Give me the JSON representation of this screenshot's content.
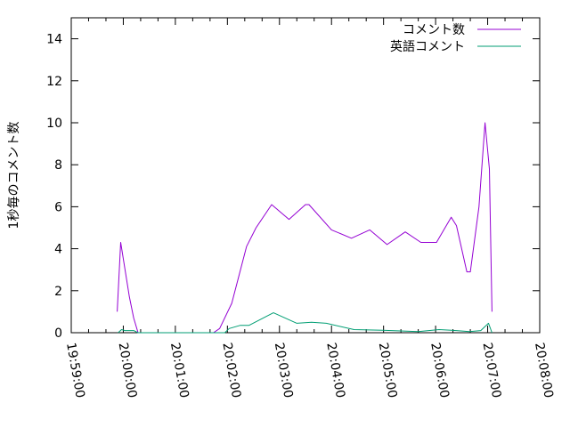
{
  "chart_data": {
    "type": "line",
    "title": "",
    "xlabel": "",
    "ylabel": "1秒毎のコメント数",
    "xlim": [
      "19:59:00",
      "20:08:00"
    ],
    "ylim": [
      0,
      15
    ],
    "x_ticks": [
      "19:59:00",
      "20:00:00",
      "20:01:00",
      "20:02:00",
      "20:03:00",
      "20:04:00",
      "20:05:00",
      "20:06:00",
      "20:07:00",
      "20:08:00"
    ],
    "y_ticks": [
      "0",
      "2",
      "4",
      "6",
      "8",
      "10",
      "12",
      "14"
    ],
    "grid": false,
    "legend_position": "top-right",
    "series": [
      {
        "name": "コメント数",
        "color": "#9400d3",
        "points": [
          [
            "19:59:53",
            1.0
          ],
          [
            "19:59:57",
            4.3
          ],
          [
            "20:00:02",
            3.0
          ],
          [
            "20:00:07",
            1.7
          ],
          [
            "20:00:12",
            0.7
          ],
          [
            "20:00:17",
            0
          ],
          [
            "20:01:44",
            0
          ],
          [
            "20:01:51",
            0.2
          ],
          [
            "20:02:05",
            1.4
          ],
          [
            "20:02:22",
            4.1
          ],
          [
            "20:02:33",
            5.0
          ],
          [
            "20:02:51",
            6.1
          ],
          [
            "20:03:11",
            5.4
          ],
          [
            "20:03:30",
            6.1
          ],
          [
            "20:03:34",
            6.1
          ],
          [
            "20:04:00",
            4.9
          ],
          [
            "20:04:23",
            4.5
          ],
          [
            "20:04:44",
            4.9
          ],
          [
            "20:05:04",
            4.2
          ],
          [
            "20:05:25",
            4.8
          ],
          [
            "20:05:43",
            4.3
          ],
          [
            "20:06:01",
            4.3
          ],
          [
            "20:06:18",
            5.5
          ],
          [
            "20:06:24",
            5.1
          ],
          [
            "20:06:36",
            2.9
          ],
          [
            "20:06:40",
            2.9
          ],
          [
            "20:06:50",
            6.0
          ],
          [
            "20:06:57",
            10.0
          ],
          [
            "20:07:02",
            7.8
          ],
          [
            "20:07:05",
            1.0
          ]
        ]
      },
      {
        "name": "英語コメント",
        "color": "#009e73",
        "points": [
          [
            "19:59:54",
            0
          ],
          [
            "19:59:58",
            0.15
          ],
          [
            "20:00:02",
            0.1
          ],
          [
            "20:00:12",
            0.1
          ],
          [
            "20:00:17",
            0
          ],
          [
            "20:01:57",
            0
          ],
          [
            "20:02:02",
            0.2
          ],
          [
            "20:02:15",
            0.35
          ],
          [
            "20:02:25",
            0.35
          ],
          [
            "20:02:53",
            0.95
          ],
          [
            "20:03:20",
            0.45
          ],
          [
            "20:03:37",
            0.5
          ],
          [
            "20:03:54",
            0.45
          ],
          [
            "20:04:26",
            0.15
          ],
          [
            "20:04:59",
            0.12
          ],
          [
            "20:05:40",
            0.05
          ],
          [
            "20:06:04",
            0.15
          ],
          [
            "20:06:24",
            0.1
          ],
          [
            "20:06:39",
            0.05
          ],
          [
            "20:06:52",
            0.1
          ],
          [
            "20:07:01",
            0.45
          ],
          [
            "20:07:05",
            0
          ]
        ]
      }
    ]
  }
}
